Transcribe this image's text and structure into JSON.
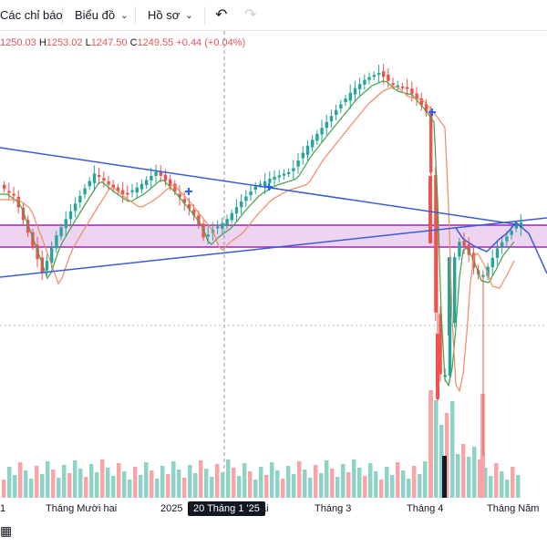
{
  "toolbar": {
    "indicators_label": "Các chỉ báo",
    "chart_label": "Biểu đồ",
    "profile_label": "Hồ sơ",
    "chevron": "⌄",
    "undo_icon": "↶",
    "redo_icon": "↷"
  },
  "ohlc": {
    "open_value": "1250.03",
    "high_label": "H",
    "high_value": "1253.02",
    "low_label": "L",
    "low_value": "1247.50",
    "close_label": "C",
    "close_value": "1249.55",
    "change": "+0.44 (+0.04%)"
  },
  "time_axis": {
    "labels": [
      "1",
      "Tháng Mười hai",
      "2025",
      "ai",
      "Tháng 3",
      "Tháng 4",
      "Tháng Năm"
    ],
    "crosshair_date": "20 Tháng 1 '25"
  },
  "colors": {
    "up": "#26a69a",
    "down": "#ef5350",
    "trendline": "#3a5bd9",
    "ma_fast": "#43a047",
    "ma_slow": "#f08a5d",
    "zone_fill": "#e9c9ee",
    "zone_border": "#9c27b0",
    "vol_up": "#8fd3c7",
    "vol_down": "#f6a6a8"
  },
  "footer": {
    "icon": "calendar-icon"
  }
}
